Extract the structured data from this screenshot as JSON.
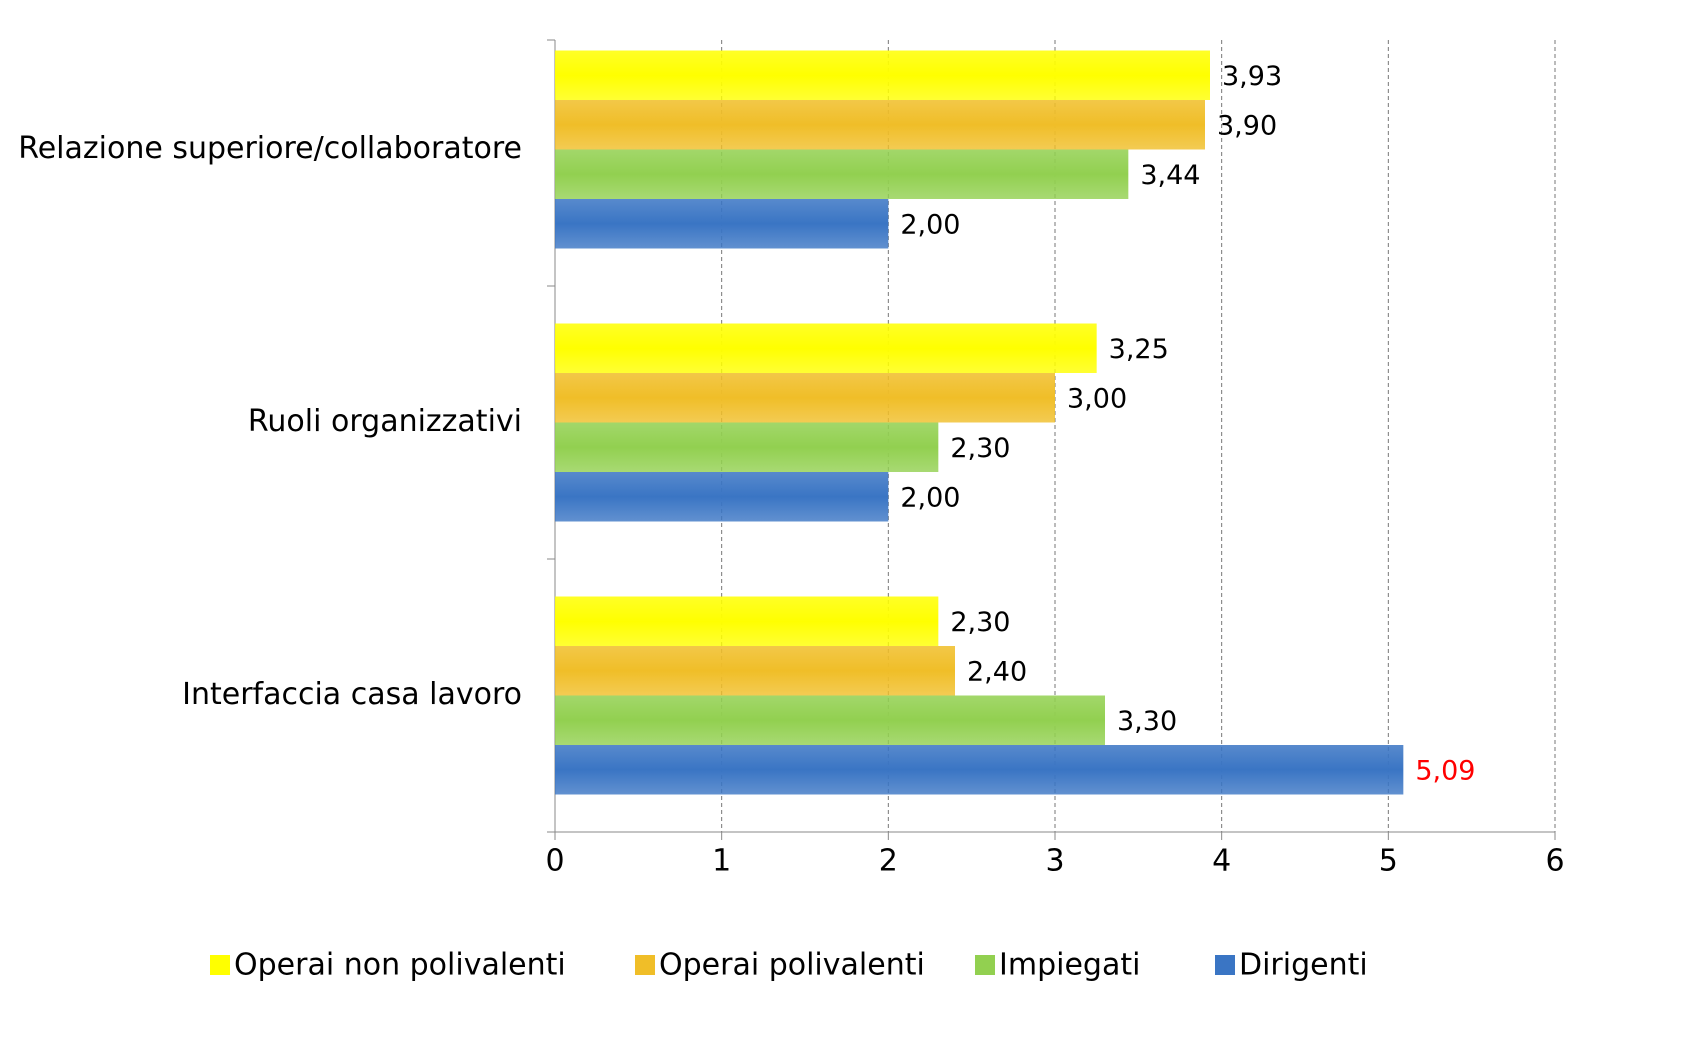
{
  "chart_data": {
    "type": "bar",
    "orientation": "horizontal",
    "categories": [
      "Relazione superiore/collaboratore",
      "Ruoli organizzativi",
      "Interfaccia casa lavoro"
    ],
    "series": [
      {
        "name": "Operai non polivalenti",
        "color": "#ffff00",
        "values": [
          3.93,
          3.25,
          2.3
        ],
        "value_labels": [
          "3,93",
          "3,25",
          "2,30"
        ]
      },
      {
        "name": "Operai polivalenti",
        "color": "#f0be28",
        "values": [
          3.9,
          3.0,
          2.4
        ],
        "value_labels": [
          "3,90",
          "3,00",
          "2,40"
        ]
      },
      {
        "name": "Impiegati",
        "color": "#92d050",
        "values": [
          3.44,
          2.3,
          3.3
        ],
        "value_labels": [
          "3,44",
          "2,30",
          "3,30"
        ]
      },
      {
        "name": "Dirigenti",
        "color": "#3a75c4",
        "values": [
          2.0,
          2.0,
          5.09
        ],
        "value_labels": [
          "2,00",
          "2,00",
          "5,09"
        ],
        "value_label_colors": [
          "#000000",
          "#000000",
          "#ff0000"
        ]
      }
    ],
    "xlim": [
      0,
      6
    ],
    "xticks": [
      0,
      1,
      2,
      3,
      4,
      5,
      6
    ],
    "grid": true,
    "legend": "bottom"
  }
}
